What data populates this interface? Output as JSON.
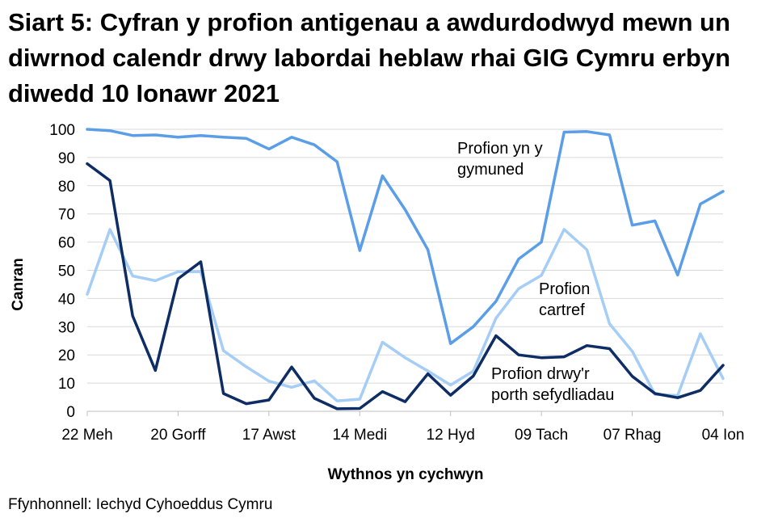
{
  "chart_data": {
    "type": "line",
    "title": "Siart 5: Cyfran y profion antigenau a awdurdodwyd mewn un diwrnod calendr drwy labordai heblaw rhai GIG Cymru erbyn diwedd 10 Ionawr 2021",
    "xlabel": "Wythnos yn cychwyn",
    "ylabel": "Canran",
    "ylim": [
      0,
      100
    ],
    "yticks": [
      0,
      10,
      20,
      30,
      40,
      50,
      60,
      70,
      80,
      90,
      100
    ],
    "grid": true,
    "x_tick_labels": [
      "22 Meh",
      "20 Gorff",
      "17 Awst",
      "14 Medi",
      "12 Hyd",
      "09 Tach",
      "07 Rhag",
      "04 Ion"
    ],
    "x_tick_index": [
      0,
      4,
      8,
      12,
      16,
      20,
      24,
      28
    ],
    "n_weeks": 29,
    "series": [
      {
        "name": "Profion yn y gymuned",
        "label_lines": [
          "Profion yn y",
          "gymuned"
        ],
        "color": "#5b9ee8",
        "values": [
          100,
          99.5,
          97.8,
          98,
          97.2,
          97.8,
          97.2,
          96.8,
          93,
          97.2,
          94.5,
          88.5,
          57,
          83.5,
          71.5,
          57.3,
          24,
          30,
          39,
          54,
          60,
          99,
          99.2,
          98,
          66,
          67.5,
          48.3,
          73.5,
          78
        ]
      },
      {
        "name": "Profion cartref",
        "label_lines": [
          "Profion",
          "cartref"
        ],
        "color": "#a5cdf5",
        "values": [
          41.5,
          64.5,
          48,
          46.3,
          49.5,
          49.5,
          21.5,
          15.8,
          10.7,
          8.5,
          10.8,
          3.7,
          4.3,
          24.5,
          19,
          14.3,
          9.3,
          14.2,
          33,
          43.5,
          48.2,
          64.5,
          57.3,
          31,
          21.3,
          6,
          5.6,
          27.5,
          11.6
        ]
      },
      {
        "name": "Profion drwy'r porth sefydliadau",
        "label_lines": [
          "Profion drwy'r",
          "porth sefydliadau"
        ],
        "color": "#0d2d64",
        "values": [
          87.8,
          81.8,
          33.8,
          14.5,
          47,
          53,
          6.3,
          2.7,
          4,
          15.7,
          4.6,
          0.9,
          1,
          7,
          3.4,
          13.3,
          5.7,
          12.5,
          26.8,
          20,
          19,
          19.3,
          23.3,
          22.2,
          12.4,
          6.3,
          4.8,
          7.4,
          16.3
        ]
      }
    ]
  },
  "footer": {
    "source": "Ffynhonnell: Iechyd Cyhoeddus Cymru"
  }
}
